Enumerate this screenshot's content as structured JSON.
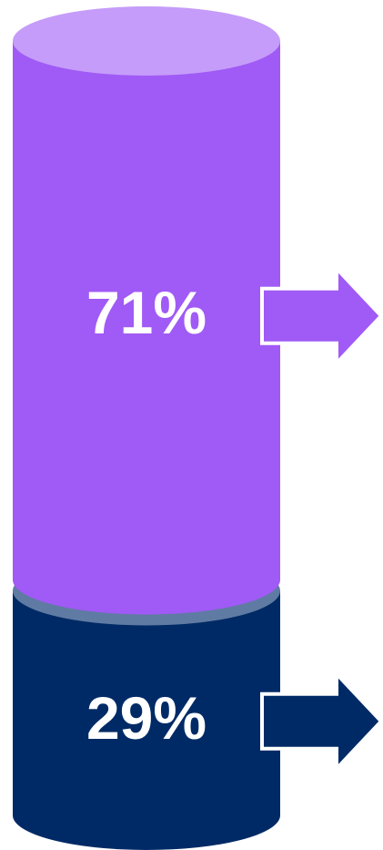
{
  "chart_data": {
    "type": "cylinder",
    "values": [
      29,
      71
    ],
    "value_labels": [
      "29%",
      "71%"
    ],
    "colors": [
      "#002a66",
      "#a05af5"
    ],
    "cap_colors": [
      "#5f7ba3",
      "#c59cf9"
    ]
  }
}
